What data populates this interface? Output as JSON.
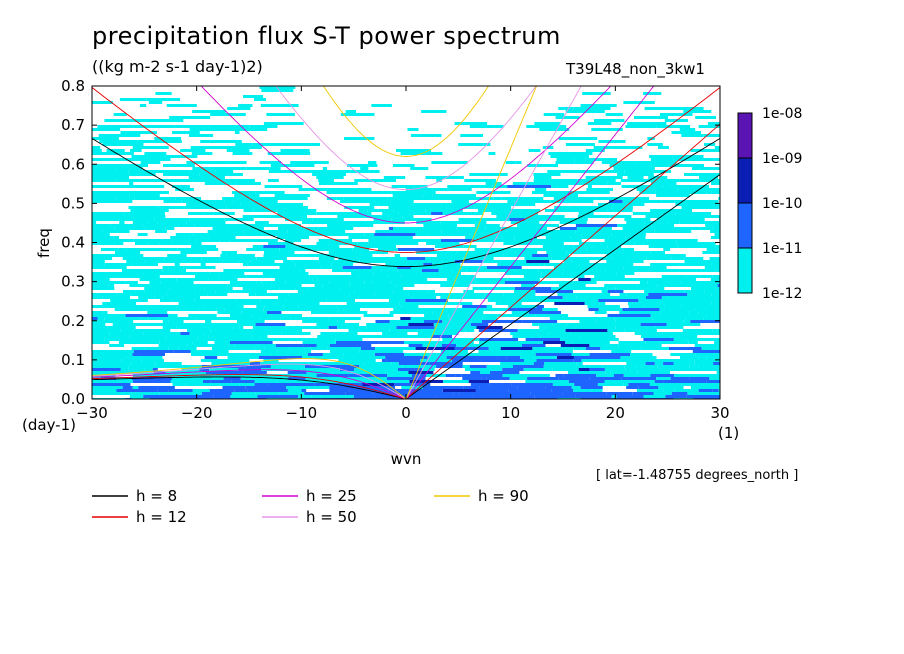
{
  "header": {
    "title": "precipitation flux S-T power spectrum",
    "units": "((kg m-2 s-1 day-1)2)",
    "run_id": "T39L48_non_3kw1",
    "lat_note": "[ lat=-1.48755 degrees_north ]"
  },
  "chart_data": {
    "type": "heatmap",
    "title": "precipitation flux S-T power spectrum",
    "xlabel": "wvn",
    "xunit": "(1)",
    "ylabel": "freq",
    "yunit": "(day-1)",
    "xlim": [
      -30,
      30
    ],
    "ylim": [
      0,
      0.8
    ],
    "xticks": [
      -30,
      -20,
      -10,
      0,
      10,
      20,
      30
    ],
    "yticks": [
      0.0,
      0.1,
      0.2,
      0.3,
      0.4,
      0.5,
      0.6,
      0.7,
      0.8
    ],
    "colorbar": {
      "levels": [
        "1e-08",
        "1e-09",
        "1e-10",
        "1e-11",
        "1e-12"
      ],
      "colors": [
        "#5a14b4",
        "#0a1eb4",
        "#1e64ff",
        "#00f0f0"
      ]
    },
    "series": [
      {
        "name": "h =  8",
        "color": "#000000"
      },
      {
        "name": "h = 12",
        "color": "#e60000"
      },
      {
        "name": "h = 25",
        "color": "#d200d2"
      },
      {
        "name": "h = 50",
        "color": "#e696e6"
      },
      {
        "name": "h = 90",
        "color": "#f0c800"
      }
    ]
  }
}
